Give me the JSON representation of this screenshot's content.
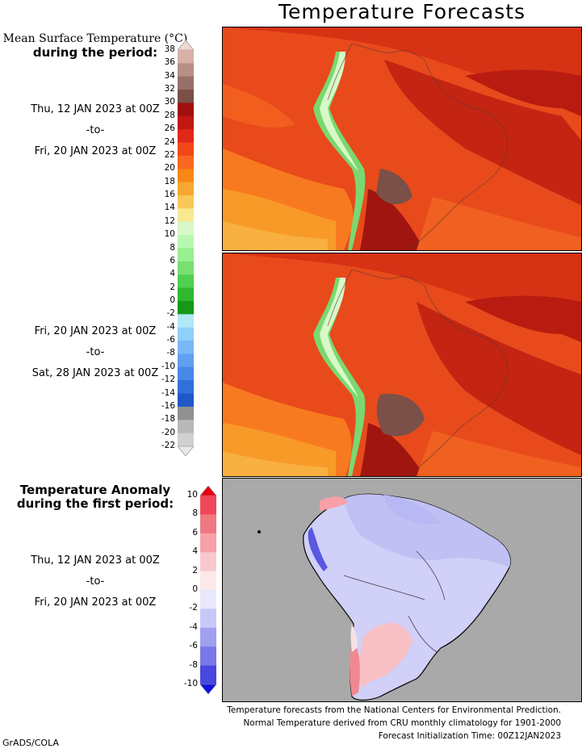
{
  "title": "Temperature Forecasts",
  "mean_panel": {
    "heading_line1": "Mean Surface Temperature (°C)",
    "heading_line2": "during the period:"
  },
  "period1": {
    "start": "Thu, 12 JAN 2023 at 00Z",
    "sep": "-to-",
    "end": "Fri, 20 JAN 2023 at 00Z"
  },
  "period2": {
    "start": "Fri, 20 JAN 2023 at 00Z",
    "sep": "-to-",
    "end": "Sat, 28 JAN 2023 at 00Z"
  },
  "anomaly_panel": {
    "heading_line1": "Temperature Anomaly",
    "heading_line2": "during the first period:",
    "start": "Thu, 12 JAN 2023 at 00Z",
    "sep": "-to-",
    "end": "Fri, 20 JAN 2023 at 00Z"
  },
  "temp_scale": {
    "labels": [
      "38",
      "36",
      "34",
      "32",
      "30",
      "28",
      "26",
      "24",
      "22",
      "20",
      "18",
      "16",
      "14",
      "12",
      "10",
      "8",
      "6",
      "4",
      "2",
      "0",
      "-2",
      "-4",
      "-6",
      "-8",
      "-10",
      "-12",
      "-14",
      "-16",
      "-18",
      "-20",
      "-22"
    ],
    "colors": [
      "#f0d8d0",
      "#d8b0a8",
      "#b89088",
      "#98706a",
      "#7a5048",
      "#a01010",
      "#c01810",
      "#e02818",
      "#f04818",
      "#f86820",
      "#f88818",
      "#f8a830",
      "#f8c858",
      "#f8e890",
      "#d8f8c8",
      "#b8f8b0",
      "#98f090",
      "#78e070",
      "#50d050",
      "#30b830",
      "#189818",
      "#b0e8f8",
      "#90d0f8",
      "#78b8f8",
      "#60a0f0",
      "#4888e8",
      "#3070d8",
      "#2058c8",
      "#909090",
      "#b8b8b8",
      "#d0d0d0",
      "#e8e8e8"
    ]
  },
  "anomaly_scale": {
    "labels": [
      "10",
      "8",
      "6",
      "4",
      "2",
      "0",
      "-2",
      "-4",
      "-6",
      "-8",
      "-10"
    ],
    "colors": [
      "#e80010",
      "#f04858",
      "#f07880",
      "#f8a0a8",
      "#f8c8cc",
      "#fce8ea",
      "#e8e8fc",
      "#c8c8f8",
      "#a0a0f0",
      "#7878e8",
      "#4848e0",
      "#1010e0"
    ]
  },
  "footer": {
    "line1": "Temperature forecasts from the National Centers for Environmental Prediction.",
    "line2": "Normal Temperature derived from CRU monthly climatology for 1901-2000",
    "line3": "Forecast Initialization Time: 00Z12JAN2023"
  },
  "credit": "GrADS/COLA"
}
